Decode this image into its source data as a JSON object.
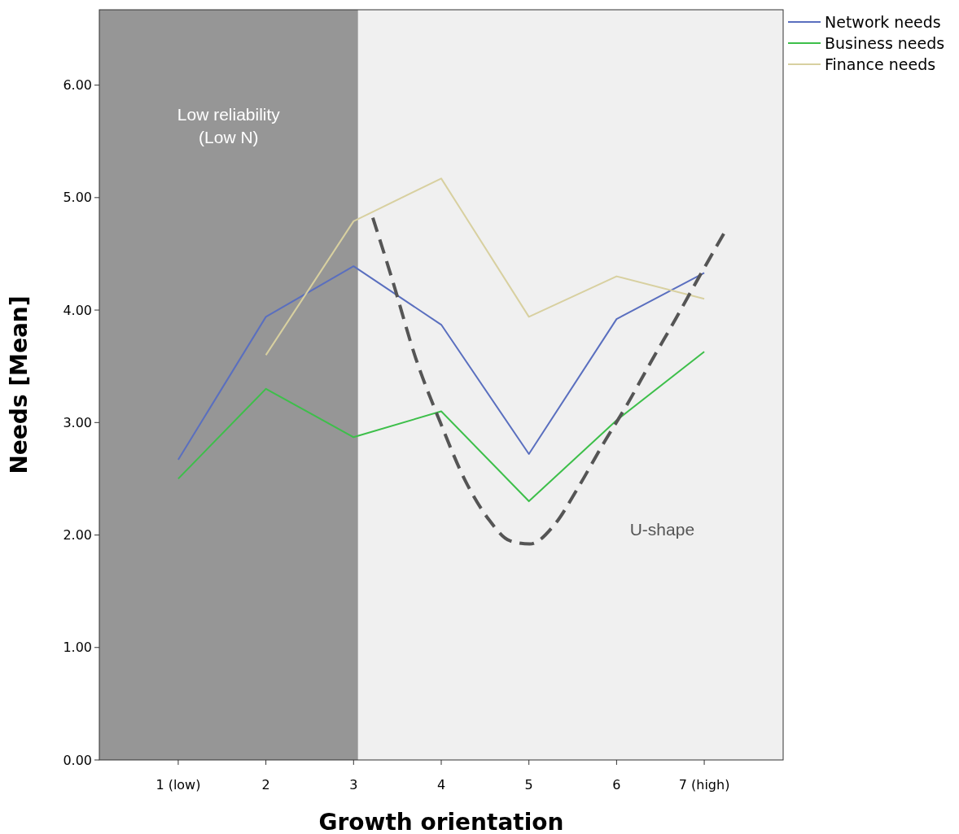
{
  "chart_data": {
    "type": "line",
    "xlabel": "Growth orientation",
    "ylabel": "Needs [Mean]",
    "x": [
      1,
      2,
      3,
      4,
      5,
      6,
      7
    ],
    "series": [
      {
        "name": "Network needs",
        "color": "#5a6fbf",
        "values": [
          2.67,
          3.94,
          4.39,
          3.87,
          2.72,
          3.92,
          4.33
        ]
      },
      {
        "name": "Business needs",
        "color": "#3dbf4a",
        "values": [
          2.5,
          3.3,
          2.87,
          3.1,
          2.3,
          3.02,
          3.63
        ]
      },
      {
        "name": "Finance needs",
        "color": "#d8d0a0",
        "values": [
          null,
          3.6,
          4.79,
          5.17,
          3.94,
          4.3,
          4.1
        ]
      },
      {
        "type": "line",
        "line_style": "dashed",
        "color": "#555555",
        "x": [
          3.22,
          3.43,
          3.71,
          3.99,
          4.27,
          4.55,
          4.78,
          5.01,
          5.29,
          5.56,
          5.84,
          6.12,
          6.4,
          6.68,
          6.96,
          7.26
        ],
        "values": [
          4.82,
          4.3,
          3.57,
          3.0,
          2.49,
          2.13,
          1.95,
          1.92,
          2.09,
          2.42,
          2.8,
          3.16,
          3.55,
          3.93,
          4.32,
          4.73
        ]
      }
    ],
    "xlim": [
      0.1,
      7.9
    ],
    "xticks": [
      {
        "value": 1,
        "label": "1 (low)"
      },
      2,
      3,
      4,
      5,
      6,
      {
        "value": 7,
        "label": "7 (high)"
      }
    ],
    "ylim": [
      0,
      6.67
    ],
    "yticks": [
      {
        "value": 0,
        "label": "0.00"
      },
      {
        "value": 1,
        "label": "1.00"
      },
      {
        "value": 2,
        "label": "2.00"
      },
      {
        "value": 3,
        "label": "3.00"
      },
      {
        "value": 4,
        "label": "4.00"
      },
      {
        "value": 5,
        "label": "5.00"
      },
      {
        "value": 6,
        "label": "6.00"
      }
    ],
    "bands": [
      {
        "axis": "x",
        "from": 0.1,
        "to": 3.05,
        "label": "Low reliability\n(Low N)",
        "color": "#969696"
      }
    ],
    "annotations": [
      "U-shape"
    ],
    "legend": "top right",
    "grid": false,
    "marker": "none",
    "line_style": "solid"
  }
}
